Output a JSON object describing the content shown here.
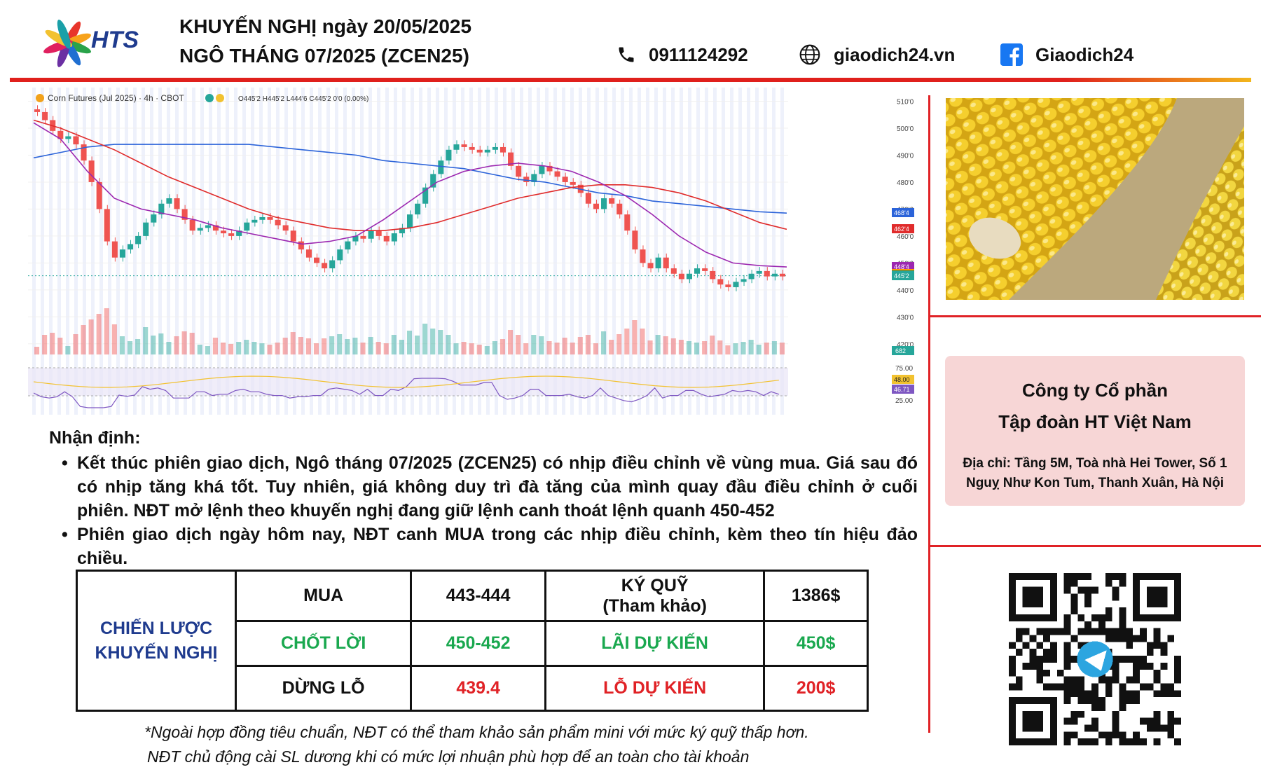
{
  "header": {
    "brand": "HTS",
    "title_line1": "KHUYẾN NGHỊ ngày 20/05/2025",
    "title_line2": "NGÔ THÁNG 07/2025 (ZCEN25)",
    "phone": "0911124292",
    "website": "giaodich24.vn",
    "facebook": "Giaodich24"
  },
  "chart_data": {
    "type": "candlestick",
    "title": "Corn Futures (Jul 2025) · 4h · CBOT",
    "ohlc_label": "O445'2 H445'2 L444'6 C445'2 0'0 (0.00%)",
    "price_axis_ticks": [
      "510'0",
      "500'0",
      "490'0",
      "480'0",
      "470'0",
      "460'0",
      "450'0",
      "440'0",
      "430'0",
      "420'0"
    ],
    "ylim": [
      415,
      513
    ],
    "price_tags": [
      {
        "label": "468'4",
        "value": 468.5,
        "color": "#2b63d9"
      },
      {
        "label": "462'4",
        "value": 462.5,
        "color": "#e02b2b"
      },
      {
        "label": "448'4",
        "value": 448.5,
        "color": "#9c27b0"
      },
      {
        "label": "446'0",
        "value": 446.0,
        "color": "#ff9800"
      },
      {
        "label": "446'0",
        "value": 445.4,
        "color": "#2e8b57"
      },
      {
        "label": "445'2",
        "value": 445.25,
        "color": "#26a69a"
      }
    ],
    "close_series": [
      506,
      503,
      499,
      496,
      497,
      494,
      488,
      480,
      470,
      458,
      452,
      455,
      457,
      460,
      465,
      468,
      472,
      474,
      470,
      466,
      462,
      463,
      464,
      462,
      461,
      460,
      462,
      465,
      466,
      467,
      466,
      464,
      462,
      458,
      455,
      452,
      450,
      448,
      451,
      455,
      458,
      460,
      459,
      462,
      460,
      458,
      461,
      463,
      468,
      472,
      478,
      483,
      488,
      492,
      494,
      493,
      492,
      491,
      492,
      493,
      491,
      486,
      482,
      480,
      483,
      486,
      484,
      482,
      480,
      479,
      476,
      472,
      470,
      474,
      472,
      468,
      462,
      455,
      450,
      448,
      452,
      448,
      446,
      444,
      446,
      448,
      447,
      444,
      442,
      441,
      443,
      444,
      446,
      447,
      445,
      446,
      445
    ],
    "sma_series": [
      {
        "name": "",
        "color": "#2b63d9",
        "values": [
          489,
          491,
          493,
          494,
          494,
          494,
          494,
          494,
          494,
          493,
          492,
          491,
          490,
          488,
          487,
          486,
          485,
          483,
          481,
          480,
          478,
          476,
          475,
          473,
          472,
          471,
          470,
          469,
          468.5
        ]
      },
      {
        "name": "",
        "color": "#e02b2b",
        "values": [
          503,
          500,
          496,
          492,
          487,
          482,
          478,
          474,
          470,
          467,
          465,
          463,
          462,
          462,
          463,
          465,
          468,
          471,
          474,
          476,
          478,
          479,
          479,
          478,
          476,
          473,
          469,
          465,
          462.5
        ]
      },
      {
        "name": "",
        "color": "#9c27b0",
        "values": [
          502,
          496,
          484,
          474,
          470,
          468,
          466,
          463,
          461,
          459,
          457,
          458,
          460,
          466,
          473,
          480,
          484,
          486,
          487,
          486,
          484,
          480,
          475,
          468,
          460,
          454,
          450,
          449,
          448.5
        ]
      }
    ],
    "volume_tag": "682",
    "rsi_axis_ticks": [
      "75.00",
      "25.00"
    ],
    "rsi_tags": [
      {
        "label": "48.00",
        "color": "#f2c230"
      },
      {
        "label": "46.71",
        "color": "#7e57c2"
      }
    ]
  },
  "company": {
    "name_line1": "Công ty Cổ phần",
    "name_line2": "Tập đoàn HT Việt Nam",
    "address_line1": "Địa chỉ: Tầng 5M, Toà nhà Hei Tower, Số 1",
    "address_line2": "Nguỵ Như Kon Tum, Thanh Xuân, Hà Nội"
  },
  "analysis": {
    "heading": "Nhận định:",
    "bullet1": "Kết thúc phiên giao dịch, Ngô tháng 07/2025 (ZCEN25) có nhịp điều chỉnh về vùng mua. Giá sau đó có nhịp tăng khá tốt. Tuy nhiên, giá không duy trì đà tăng của mình quay đầu điều chỉnh ở cuối phiên. NĐT mở lệnh theo khuyến nghị đang giữ lệnh canh thoát lệnh quanh 450-452",
    "bullet2": "Phiên giao dịch ngày hôm nay, NĐT canh MUA trong các nhịp điều chỉnh, kèm theo tín hiệu đảo chiều."
  },
  "strategy": {
    "label_line1": "CHIẾN LƯỢC",
    "label_line2": "KHUYẾN NGHỊ",
    "buy_label": "MUA",
    "buy_value": "443-444",
    "margin_label_line1": "KÝ QUỸ",
    "margin_label_line2": "(Tham khảo)",
    "margin_value": "1386$",
    "tp_label": "CHỐT LỜI",
    "tp_value": "450-452",
    "profit_label": "LÃI DỰ KIẾN",
    "profit_value": "450$",
    "sl_label": "DỪNG LỖ",
    "sl_value": "439.4",
    "loss_label": "LỖ DỰ KIẾN",
    "loss_value": "200$"
  },
  "notes": {
    "line1": "*Ngoài hợp đồng tiêu chuẩn, NĐT có thể tham khảo sản phẩm mini với mức ký quỹ thấp hơn.",
    "line2": "NĐT chủ động cài SL dương khi có mức lợi nhuận phù hợp để an toàn cho tài khoản"
  }
}
